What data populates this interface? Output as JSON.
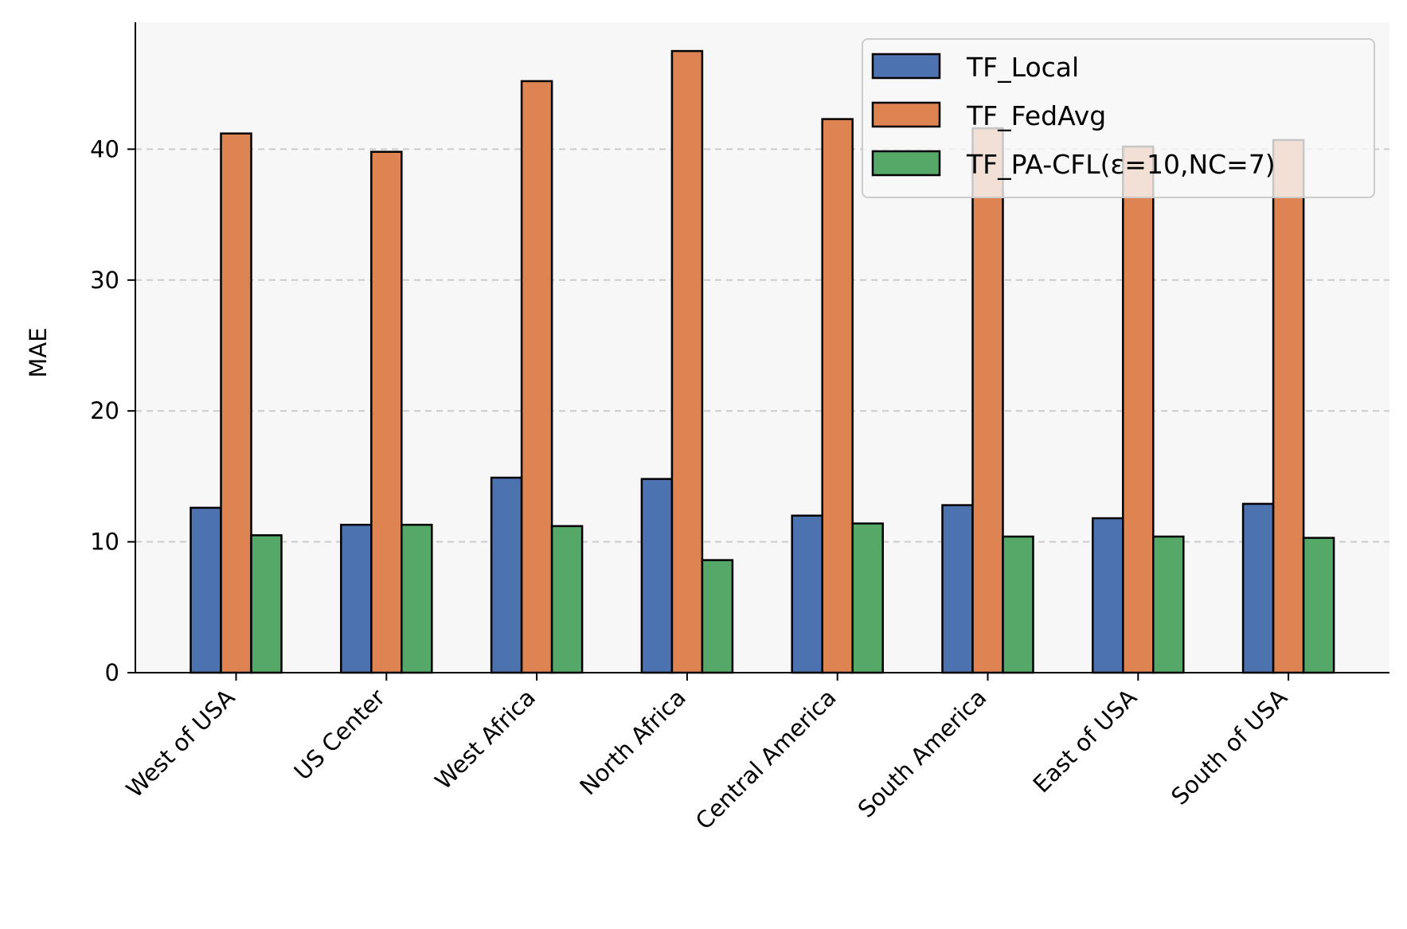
{
  "chart_data": {
    "type": "bar",
    "title": "",
    "xlabel": "",
    "ylabel": "MAE",
    "ylim": [
      0,
      50
    ],
    "yticks": [
      0,
      10,
      20,
      30,
      40
    ],
    "grid": "horizontal-dashed",
    "legend_position": "top-right",
    "categories": [
      "West of USA",
      "US Center",
      "West Africa",
      "North Africa",
      "Central America",
      "South America",
      "East of USA",
      "South of USA"
    ],
    "series": [
      {
        "name": "TF_Local",
        "color": "#4c72b0",
        "values": [
          12.6,
          11.3,
          14.9,
          14.8,
          12.0,
          12.8,
          11.8,
          12.9
        ]
      },
      {
        "name": "TF_FedAvg",
        "color": "#dd8452",
        "values": [
          41.2,
          39.8,
          45.2,
          47.5,
          42.3,
          41.6,
          40.2,
          40.7
        ]
      },
      {
        "name": "TF_PA-CFL(ε=10,NC=7)",
        "color": "#55a868",
        "values": [
          10.5,
          11.3,
          11.2,
          8.6,
          11.4,
          10.4,
          10.4,
          10.3
        ]
      }
    ]
  }
}
